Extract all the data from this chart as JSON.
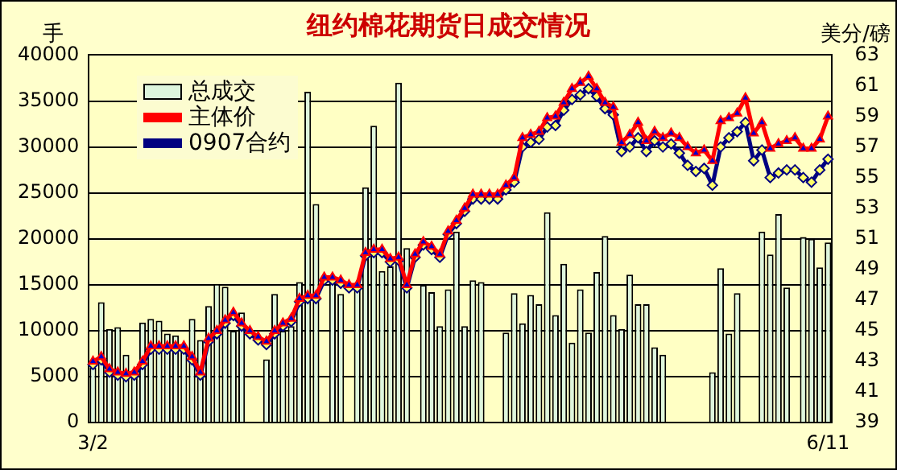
{
  "chart_data": {
    "type": "bar",
    "title": "纽约棉花期货日成交情况",
    "ylabel": "手",
    "y2label": "美分/磅",
    "categories": [
      "3/2",
      null,
      null,
      null,
      null,
      null,
      null,
      null,
      null,
      null,
      null,
      null,
      null,
      null,
      null,
      null,
      null,
      null,
      null,
      null,
      null,
      null,
      null,
      null,
      null,
      null,
      null,
      null,
      null,
      null,
      null,
      null,
      null,
      null,
      null,
      null,
      null,
      null,
      null,
      null,
      null,
      null,
      null,
      null,
      null,
      null,
      null,
      null,
      null,
      null,
      null,
      null,
      null,
      null,
      null,
      null,
      null,
      null,
      null,
      null,
      null,
      null,
      null,
      null,
      null,
      null,
      null,
      null,
      null,
      null,
      null,
      null,
      null,
      null,
      null,
      null,
      null,
      null,
      null,
      null,
      null,
      null,
      null,
      null,
      null,
      null,
      null,
      null,
      null,
      "6/11"
    ],
    "series": [
      {
        "name": "总成交",
        "color": "#ddf5dd",
        "values": [
          6000,
          13100,
          10200,
          10400,
          7400,
          5000,
          10900,
          11300,
          11100,
          9700,
          9500,
          8000,
          11300,
          9000,
          12700,
          15100,
          14800,
          10000,
          12000,
          null,
          null,
          6900,
          14000,
          10000,
          10500,
          15300,
          36000,
          23800,
          null,
          15500,
          14000,
          null,
          14500,
          25600,
          32300,
          16500,
          17000,
          37000,
          19000,
          null,
          15000,
          14200,
          10500,
          14500,
          20800,
          10500,
          15500,
          15300,
          null,
          null,
          9800,
          14100,
          10800,
          13900,
          12900,
          22900,
          11700,
          17300,
          8700,
          14500,
          9800,
          16400,
          20300,
          11700,
          10200,
          16100,
          12900,
          12900,
          8200,
          7400,
          null,
          null,
          null,
          null,
          null,
          5500,
          16800,
          9700,
          14100,
          null,
          null,
          20800,
          18300,
          22700,
          14700,
          null,
          20200,
          20000,
          16900,
          19600
        ]
      },
      {
        "name": "主体价",
        "type": "line",
        "axis": "y2",
        "color": "#ff0000",
        "marker": "triangle",
        "values": [
          43.0,
          43.3,
          42.5,
          42.3,
          42.2,
          42.3,
          43.0,
          44.0,
          44.0,
          44.0,
          44.0,
          44.0,
          43.3,
          42.3,
          44.5,
          45.0,
          45.7,
          46.2,
          45.5,
          45.0,
          44.6,
          44.3,
          45.0,
          45.5,
          45.8,
          47.1,
          47.3,
          47.3,
          48.5,
          48.5,
          48.3,
          48.0,
          48.0,
          50.1,
          50.3,
          50.3,
          49.7,
          49.8,
          48.0,
          50.0,
          50.8,
          50.5,
          50.0,
          51.5,
          52.2,
          53.0,
          53.9,
          53.9,
          53.9,
          53.9,
          54.5,
          55.0,
          57.6,
          57.8,
          58.0,
          58.9,
          59.0,
          59.9,
          60.8,
          61.2,
          61.6,
          60.8,
          59.9,
          59.6,
          57.3,
          57.8,
          58.6,
          57.4,
          58.0,
          57.6,
          57.9,
          57.6,
          57.0,
          56.6,
          56.8,
          56.1,
          58.7,
          58.9,
          59.2,
          60.2,
          57.9,
          58.6,
          56.9,
          57.2,
          57.4,
          57.6,
          56.9,
          56.9,
          57.5,
          59.0
        ]
      },
      {
        "name": "0907合约",
        "type": "line",
        "axis": "y2",
        "color": "#000080",
        "marker": "diamond",
        "values": [
          42.8,
          43.1,
          42.3,
          42.1,
          42.0,
          42.1,
          42.8,
          43.8,
          43.8,
          43.8,
          43.8,
          43.8,
          43.1,
          42.1,
          44.3,
          44.8,
          45.5,
          46.0,
          45.3,
          44.8,
          44.4,
          44.1,
          44.8,
          45.3,
          45.6,
          46.9,
          47.1,
          47.1,
          48.3,
          48.3,
          48.1,
          47.8,
          47.8,
          49.9,
          50.1,
          50.1,
          49.5,
          49.6,
          47.8,
          49.8,
          50.6,
          50.3,
          49.8,
          51.3,
          52.0,
          52.8,
          53.6,
          53.6,
          53.6,
          53.6,
          54.2,
          54.7,
          57.0,
          57.3,
          57.5,
          58.3,
          58.4,
          59.4,
          60.1,
          60.4,
          60.8,
          60.3,
          59.5,
          59.1,
          56.7,
          57.0,
          57.6,
          56.7,
          57.4,
          57.0,
          57.2,
          56.6,
          55.8,
          55.4,
          55.6,
          54.5,
          57.0,
          57.6,
          58.0,
          58.6,
          56.1,
          56.8,
          55.0,
          55.3,
          55.5,
          55.5,
          55.0,
          54.7,
          55.5,
          56.2
        ]
      }
    ],
    "ylim": [
      0,
      40000
    ],
    "yticks": [
      0,
      5000,
      10000,
      15000,
      20000,
      25000,
      30000,
      35000,
      40000
    ],
    "y2lim": [
      39,
      63
    ],
    "y2ticks": [
      39,
      41,
      43,
      45,
      47,
      49,
      51,
      53,
      55,
      57,
      59,
      61,
      63
    ],
    "grid": "y",
    "legend": "top left"
  }
}
